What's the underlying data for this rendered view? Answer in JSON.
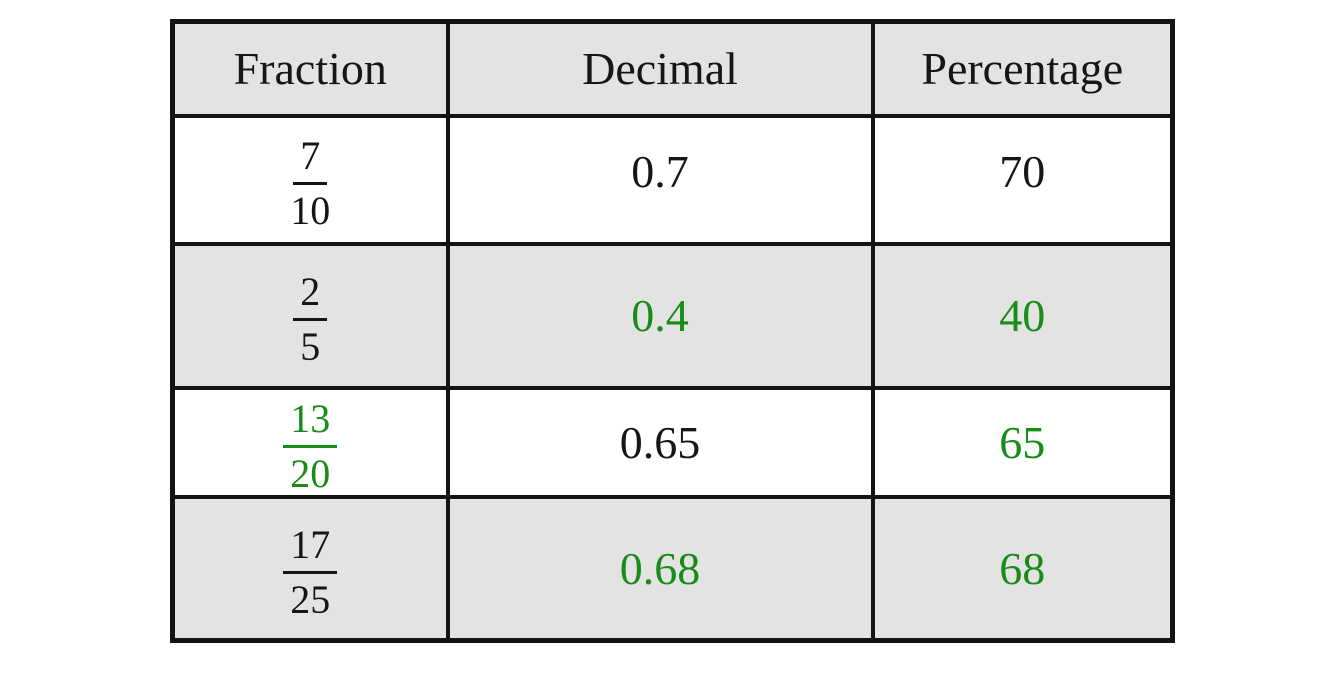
{
  "table": {
    "title": "fraction-decimal-percentage conversion table",
    "columns": [
      {
        "label": "Fraction"
      },
      {
        "label": "Decimal"
      },
      {
        "label": "Percentage"
      }
    ],
    "rows": [
      {
        "fraction": {
          "numerator": "7",
          "denominator": "10",
          "color": "black"
        },
        "decimal": {
          "value": "0.7",
          "color": "black"
        },
        "percentage": {
          "value": "70",
          "color": "black"
        }
      },
      {
        "fraction": {
          "numerator": "2",
          "denominator": "5",
          "color": "black"
        },
        "decimal": {
          "value": "0.4",
          "color": "green"
        },
        "percentage": {
          "value": "40",
          "color": "green"
        }
      },
      {
        "fraction": {
          "numerator": "13",
          "denominator": "20",
          "color": "green"
        },
        "decimal": {
          "value": "0.65",
          "color": "black"
        },
        "percentage": {
          "value": "65",
          "color": "green"
        }
      },
      {
        "fraction": {
          "numerator": "17",
          "denominator": "25",
          "color": "black"
        },
        "decimal": {
          "value": "0.68",
          "color": "green"
        },
        "percentage": {
          "value": "68",
          "color": "green"
        }
      }
    ],
    "colors": {
      "answer_green": "#178c17",
      "given_black": "#161616",
      "border": "#141414",
      "shaded_row_bg": "#e3e3e3",
      "page_bg": "#ffffff"
    }
  }
}
